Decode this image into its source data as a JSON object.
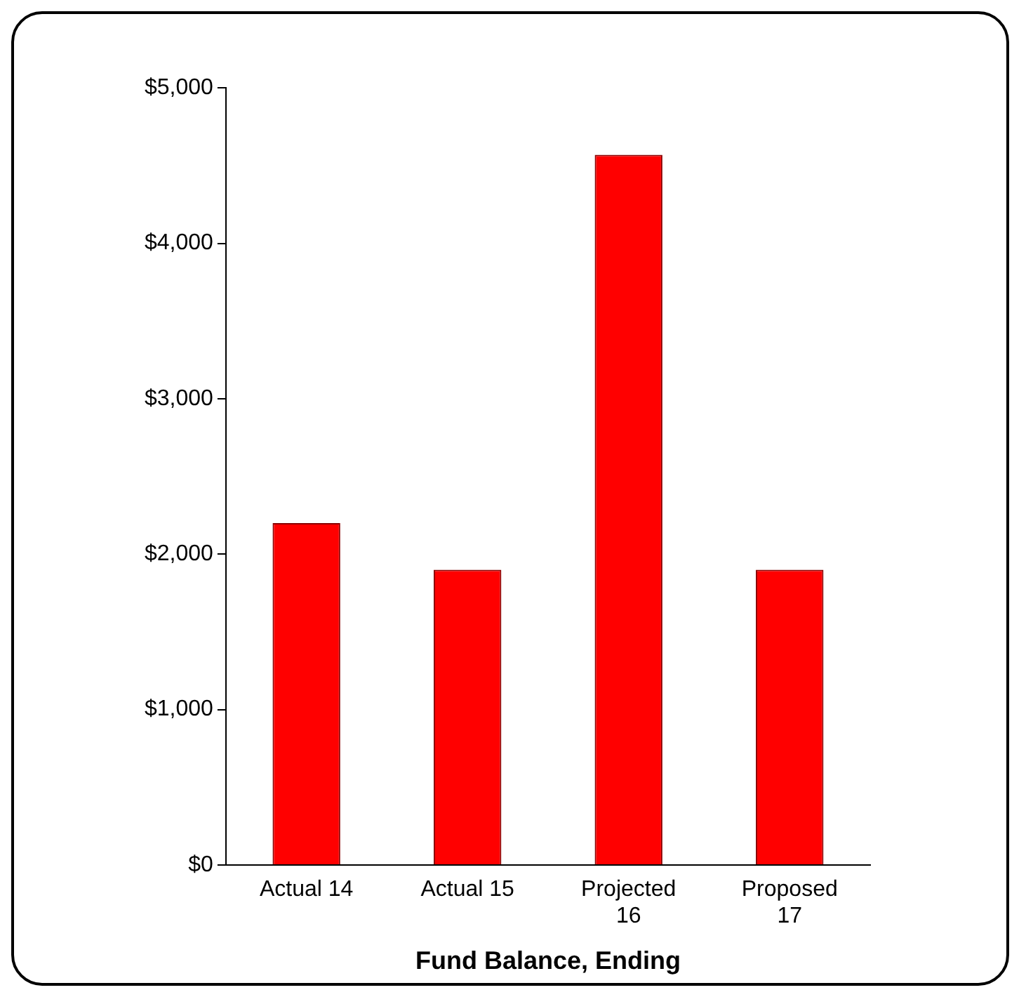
{
  "chart_data": {
    "type": "bar",
    "xlabel": "Fund Balance, Ending",
    "categories": [
      "Actual 14",
      "Actual 15",
      "Projected 16",
      "Proposed 17"
    ],
    "values": [
      2200,
      1900,
      4570,
      1900
    ],
    "color": "#ff0000",
    "ylim": [
      0,
      5000
    ],
    "yticks": [
      {
        "value": 0,
        "label": "$0"
      },
      {
        "value": 1000,
        "label": "$1,000"
      },
      {
        "value": 2000,
        "label": "$2,000"
      },
      {
        "value": 3000,
        "label": "$3,000"
      },
      {
        "value": 4000,
        "label": "$4,000"
      },
      {
        "value": 5000,
        "label": "$5,000"
      }
    ],
    "grid": false,
    "legend": false
  }
}
